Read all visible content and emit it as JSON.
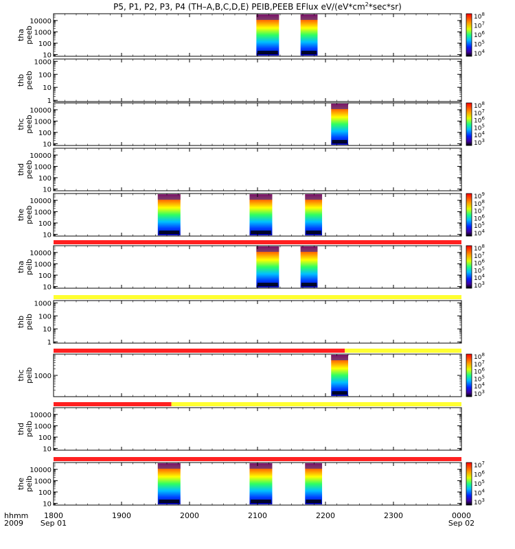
{
  "title": "P5, P1, P2, P3, P4 (TH–A,B,C,D,E) PEIB,PEEB EFlux eV/(eV*cm",
  "title_sup": "2",
  "title_tail": "*sec*sr)",
  "time_axis": {
    "row_label_1": "hhmm",
    "row_label_2": "2009",
    "ticks": [
      {
        "t": 0,
        "label": "1800",
        "date": "Sep 01"
      },
      {
        "t": 60,
        "label": "1900",
        "date": ""
      },
      {
        "t": 120,
        "label": "2000",
        "date": ""
      },
      {
        "t": 180,
        "label": "2100",
        "date": ""
      },
      {
        "t": 240,
        "label": "2200",
        "date": ""
      },
      {
        "t": 300,
        "label": "2300",
        "date": ""
      },
      {
        "t": 360,
        "label": "0000",
        "date": "Sep 02"
      }
    ]
  },
  "chart_data": {
    "type": "heatmap",
    "x_unit": "minutes after 2009-09-01 18:00",
    "xlim": [
      0,
      360
    ],
    "y_scale": "log",
    "panels": [
      {
        "probe": "tha",
        "instrument": "peeb",
        "ylim": [
          7,
          40000
        ],
        "ticks": [
          "10",
          "100",
          "1000",
          "10000"
        ],
        "cbar": [
          "10^4",
          "10^5",
          "10^6",
          "10^7",
          "10^8"
        ],
        "bursts": [
          [
            179,
            199
          ],
          [
            218,
            233
          ]
        ],
        "modebar": null
      },
      {
        "probe": "thb",
        "instrument": "peeb",
        "ylim": [
          0.8,
          1500
        ],
        "ticks": [
          "1",
          "10",
          "100",
          "1000"
        ],
        "cbar": null,
        "bursts": [],
        "modebar": null
      },
      {
        "probe": "thc",
        "instrument": "peeb",
        "ylim": [
          7,
          40000
        ],
        "ticks": [
          "10",
          "100",
          "1000",
          "10000"
        ],
        "cbar": [
          "10^3",
          "10^4",
          "10^5",
          "10^6",
          "10^7",
          "10^8"
        ],
        "bursts": [
          [
            245,
            260
          ]
        ],
        "modebar": null
      },
      {
        "probe": "thd",
        "instrument": "peeb",
        "ylim": [
          7,
          40000
        ],
        "ticks": [
          "10",
          "100",
          "1000",
          "10000"
        ],
        "cbar": null,
        "bursts": [],
        "modebar": null
      },
      {
        "probe": "the",
        "instrument": "peeb",
        "ylim": [
          7,
          40000
        ],
        "ticks": [
          "10",
          "100",
          "1000",
          "10000"
        ],
        "cbar": [
          "10^4",
          "10^5",
          "10^6",
          "10^7",
          "10^8",
          "10^9"
        ],
        "bursts": [
          [
            92,
            112
          ],
          [
            173,
            193
          ],
          [
            222,
            237
          ]
        ],
        "modebar": null
      },
      {
        "probe": "tha",
        "instrument": "peib",
        "ylim": [
          7,
          40000
        ],
        "ticks": [
          "10",
          "100",
          "1000",
          "10000"
        ],
        "cbar": [
          "10^3",
          "10^4",
          "10^5",
          "10^6",
          "10^7",
          "10^8"
        ],
        "bursts": [
          [
            179,
            199
          ],
          [
            218,
            233
          ]
        ],
        "modebar": [
          {
            "from": 0,
            "to": 360,
            "color": "#ff2020"
          }
        ]
      },
      {
        "probe": "thb",
        "instrument": "peib",
        "ylim": [
          0.8,
          1500
        ],
        "ticks": [
          "1",
          "10",
          "100",
          "1000"
        ],
        "cbar": null,
        "bursts": [],
        "modebar": [
          {
            "from": 0,
            "to": 360,
            "color": "#ffff30"
          }
        ]
      },
      {
        "probe": "thc",
        "instrument": "peib",
        "ylim": [
          100,
          10000
        ],
        "ticks": [
          "1000"
        ],
        "cbar": [
          "10^3",
          "10^4",
          "10^5",
          "10^6",
          "10^7",
          "10^8"
        ],
        "bursts": [
          [
            245,
            260
          ]
        ],
        "modebar": [
          {
            "from": 0,
            "to": 257,
            "color": "#ff2020"
          },
          {
            "from": 257,
            "to": 360,
            "color": "#ffff30"
          }
        ]
      },
      {
        "probe": "thd",
        "instrument": "peib",
        "ylim": [
          7,
          40000
        ],
        "ticks": [
          "10",
          "100",
          "1000",
          "10000"
        ],
        "cbar": null,
        "bursts": [],
        "modebar": [
          {
            "from": 0,
            "to": 104,
            "color": "#ff2020"
          },
          {
            "from": 104,
            "to": 360,
            "color": "#ffff30"
          }
        ]
      },
      {
        "probe": "the",
        "instrument": "peib",
        "ylim": [
          7,
          40000
        ],
        "ticks": [
          "10",
          "100",
          "1000",
          "10000"
        ],
        "cbar": [
          "10^3",
          "10^4",
          "10^5",
          "10^6",
          "10^7"
        ],
        "bursts": [
          [
            92,
            112
          ],
          [
            173,
            193
          ],
          [
            222,
            237
          ]
        ],
        "modebar": [
          {
            "from": 0,
            "to": 360,
            "color": "#ff2020"
          }
        ]
      }
    ]
  }
}
